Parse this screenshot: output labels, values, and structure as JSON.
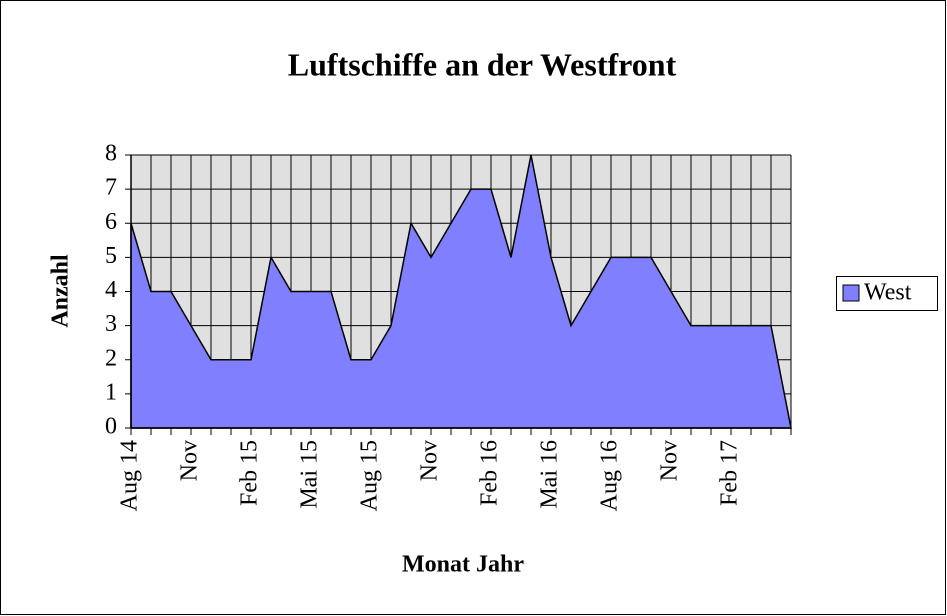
{
  "chart_data": {
    "type": "area",
    "title": "Luftschiffe an der Westfront",
    "x_label": "Monat Jahr",
    "y_label": "Anzahl",
    "categories": [
      "Aug 14",
      null,
      null,
      "Nov",
      null,
      null,
      "Feb 15",
      null,
      null,
      "Mai 15",
      null,
      null,
      "Aug 15",
      null,
      null,
      "Nov",
      null,
      null,
      "Feb 16",
      null,
      null,
      "Mai 16",
      null,
      null,
      "Aug 16",
      null,
      null,
      "Nov",
      null,
      null,
      "Feb 17",
      null,
      null,
      null
    ],
    "series": [
      {
        "name": "West",
        "color": "#8080ff",
        "values": [
          6,
          4,
          4,
          3,
          2,
          2,
          2,
          5,
          4,
          4,
          4,
          2,
          2,
          3,
          6,
          5,
          6,
          7,
          7,
          5,
          8,
          5,
          3,
          4,
          5,
          5,
          5,
          4,
          3,
          3,
          3,
          3,
          3,
          0
        ]
      }
    ],
    "ylim": [
      0,
      8
    ],
    "yticks": [
      0,
      1,
      2,
      3,
      4,
      5,
      6,
      7,
      8
    ],
    "grid": true,
    "legend": "right"
  }
}
